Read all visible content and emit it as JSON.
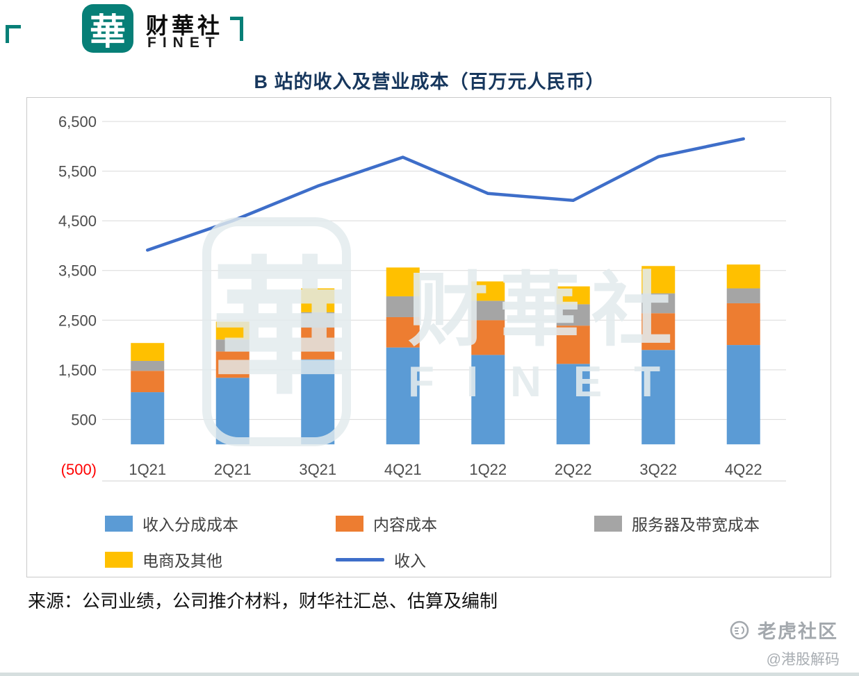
{
  "brand": {
    "logo_char": "華",
    "name": "财華社",
    "name_en": "FINET"
  },
  "title": "B 站的收入及营业成本（百万元人民币）",
  "watermark": {
    "logo_char": "華",
    "name": "财華社",
    "name_en": "FINET"
  },
  "source": "来源：公司业绩，公司推介材料，财华社汇总、估算及编制",
  "footer": {
    "community": "老虎社区",
    "handle": "@港股解码"
  },
  "colors": {
    "brand_teal": "#077f77",
    "title_navy": "#17375d",
    "gridline": "#d9d9d9",
    "axis_label": "#4d4d4d",
    "negative_label": "#ff0000",
    "box_border": "#c9c9c9"
  },
  "chart_data": {
    "type": "bar",
    "subtype": "stacked-bars-with-line",
    "title": "B 站的收入及营业成本（百万元人民币）",
    "categories": [
      "1Q21",
      "2Q21",
      "3Q21",
      "4Q21",
      "1Q22",
      "2Q22",
      "3Q22",
      "4Q22"
    ],
    "series": [
      {
        "name": "收入分成成本",
        "type": "bar",
        "color": "#5B9BD5",
        "values": [
          1050,
          1340,
          1710,
          1950,
          1800,
          1620,
          1900,
          2000
        ]
      },
      {
        "name": "内容成本",
        "type": "bar",
        "color": "#ED7D31",
        "values": [
          430,
          530,
          640,
          610,
          700,
          770,
          740,
          840
        ]
      },
      {
        "name": "服务器及带宽成本",
        "type": "bar",
        "color": "#A5A5A5",
        "values": [
          200,
          240,
          310,
          420,
          390,
          430,
          400,
          300
        ]
      },
      {
        "name": "电商及其他",
        "type": "bar",
        "color": "#FFC000",
        "values": [
          360,
          360,
          480,
          580,
          390,
          360,
          550,
          480
        ]
      },
      {
        "name": "收入",
        "type": "line",
        "color": "#3E6EC9",
        "values": [
          3910,
          4500,
          5200,
          5780,
          5050,
          4910,
          5790,
          6150
        ]
      }
    ],
    "ylim": [
      -500,
      6500
    ],
    "ytick_step": 1000,
    "ytick_labels": [
      "(500)",
      "500",
      "1,500",
      "2,500",
      "3,500",
      "4,500",
      "5,500",
      "6,500"
    ],
    "grid": "horizontal",
    "legend_position": "bottom-inside"
  }
}
